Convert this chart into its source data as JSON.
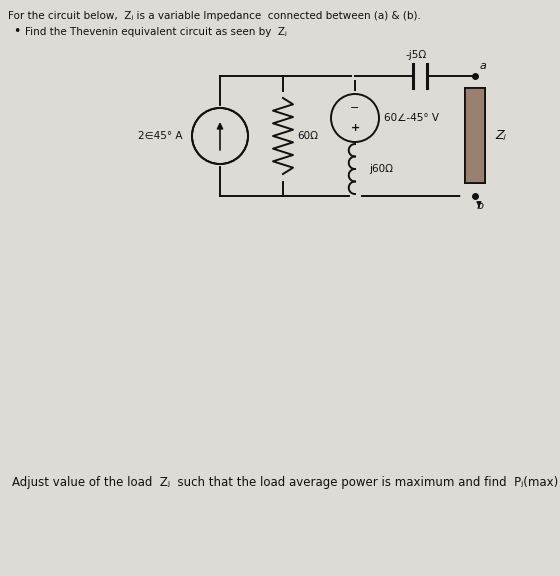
{
  "bg_color": "#dedad5",
  "title_text": "For the circuit below,  Zⱼ is a variable Impedance  connected between (a) & (b).",
  "bullet_text": "Find the Thevenin equivalent circuit as seen by  Zⱼ",
  "bottom_text": "Adjust value of the load  Zⱼ  such that the load average power is maximum and find  Pⱼ(max)",
  "current_source_label": "2∈45° A",
  "resistor_label": "60Ω",
  "cap_label": "-j5Ω",
  "voltage_source_label": "60∠-45° V",
  "inductor_label": "j60Ω",
  "ZL_label": "Zⱼ",
  "node_a": "a",
  "node_b": "b",
  "font_color": "#111111",
  "zl_fill": "#9a8070",
  "wire_color": "#111111"
}
